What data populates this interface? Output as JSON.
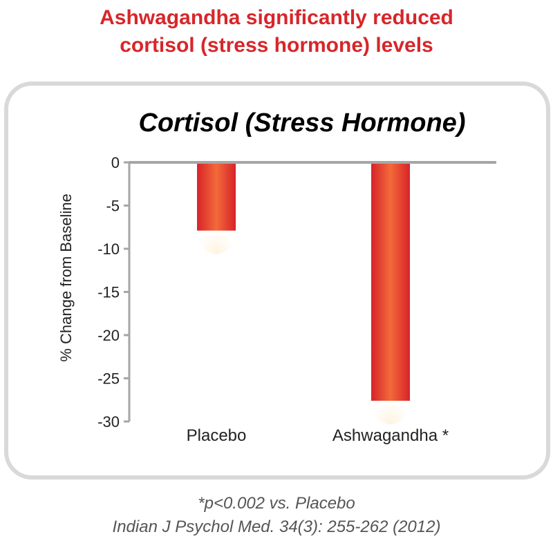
{
  "headline": {
    "line1": "Ashwagandha significantly reduced",
    "line2": "cortisol (stress hormone) levels"
  },
  "footnote": {
    "line1": "*p<0.002 vs. Placebo",
    "line2": "Indian J Psychol Med. 34(3): 255-262 (2012)"
  },
  "chart_data": {
    "type": "bar",
    "title": "Cortisol (Stress Hormone)",
    "ylabel": "% Change from Baseline",
    "xlabel": "",
    "categories": [
      "Placebo",
      "Ashwagandha *"
    ],
    "values": [
      -7.9,
      -27.6
    ],
    "ylim": [
      -30,
      0
    ],
    "yticks": [
      0,
      -5,
      -10,
      -15,
      -20,
      -25,
      -30
    ],
    "grid": false,
    "legend": "none",
    "colors": {
      "bar_edge": "#d8232a",
      "bar_center": "#f26a3a",
      "bar_glow": "#fff3e0",
      "axis": "#a6a6a6",
      "title_text": "#000000",
      "headline_text": "#d7262a"
    }
  }
}
